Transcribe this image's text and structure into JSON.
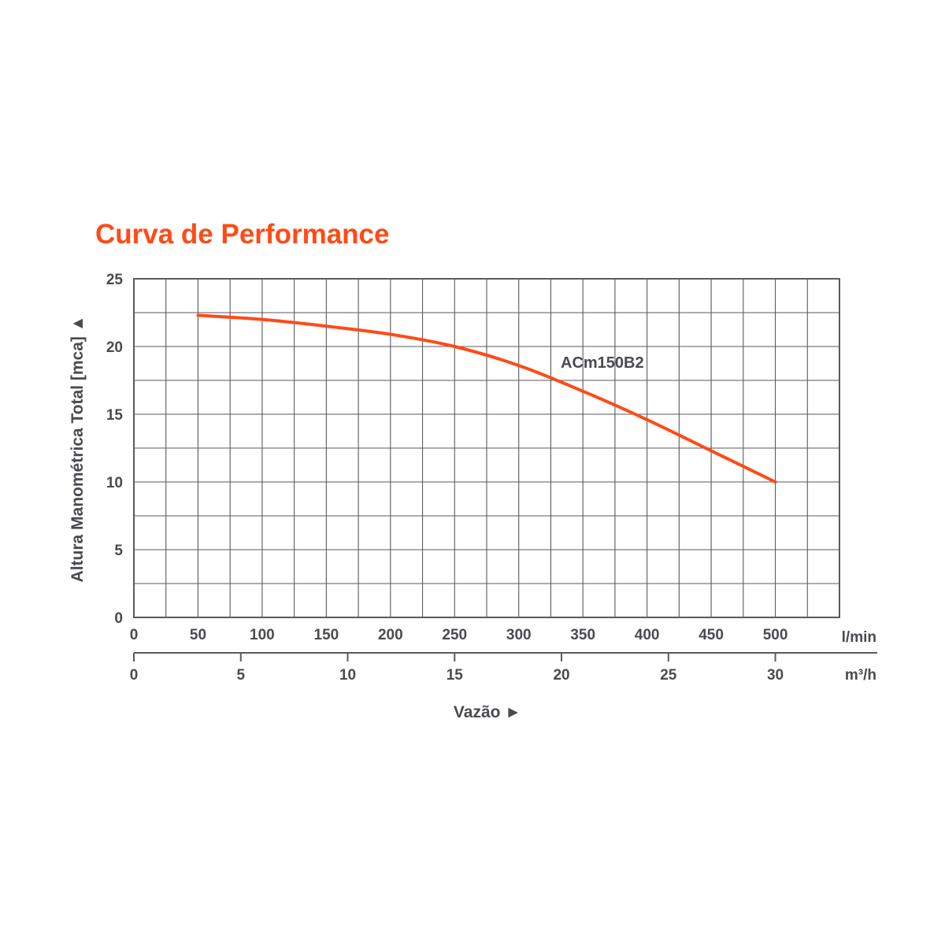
{
  "chart_data": {
    "type": "line",
    "title": "Curva de Performance",
    "ylabel": "Altura Manométrica Total [mca] ▲",
    "xlabel": "Vazão ►",
    "ylim": [
      0,
      25
    ],
    "yticks": [
      "0",
      "5",
      "10",
      "15",
      "20",
      "25"
    ],
    "xlim": [
      0,
      550
    ],
    "xticks_lmin": [
      "0",
      "50",
      "100",
      "150",
      "200",
      "250",
      "300",
      "350",
      "400",
      "450",
      "500"
    ],
    "xunit_lmin": "l/min",
    "xticks_m3h": [
      "0",
      "5",
      "10",
      "15",
      "20",
      "25",
      "30"
    ],
    "xunit_m3h": "m³/h",
    "grid": true,
    "series": [
      {
        "name": "ACm150B2",
        "x": [
          50,
          100,
          150,
          200,
          250,
          300,
          350,
          400,
          450,
          500
        ],
        "y": [
          22.3,
          22.0,
          21.5,
          20.9,
          20.0,
          18.6,
          16.7,
          14.6,
          12.3,
          10.0
        ]
      }
    ],
    "colors": {
      "curve": "#ff4a17",
      "title": "#ff4a17",
      "text": "#4a4a50",
      "grid": "#5a5a60"
    }
  }
}
